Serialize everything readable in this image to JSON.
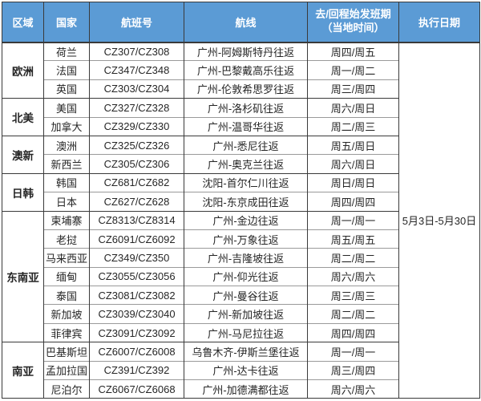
{
  "colors": {
    "header_bg": "#5B9BD5",
    "header_text": "#FFFFFF",
    "body_text": "#262626",
    "grid_dark": "#3A3A3A",
    "grid_light": "#9A9A9A"
  },
  "header": {
    "region": "区域",
    "country": "国家",
    "flight_no": "航班号",
    "route": "航线",
    "schedule_line1": "去/回程始发班期",
    "schedule_line2": "（当地时间）",
    "exec_date": "执行日期"
  },
  "execution_date": "5月3日-5月30日",
  "groups": [
    {
      "region": "欧洲",
      "rows": [
        {
          "country": "荷兰",
          "flight": "CZ307/CZ308",
          "route": "广州-阿姆斯特丹往返",
          "schedule": "周四/周五"
        },
        {
          "country": "法国",
          "flight": "CZ347/CZ348",
          "route": "广州-巴黎戴高乐往返",
          "schedule": "周一/周二"
        },
        {
          "country": "英国",
          "flight": "CZ303/CZ304",
          "route": "广州-伦敦希思罗往返",
          "schedule": "周三/周四"
        }
      ]
    },
    {
      "region": "北美",
      "rows": [
        {
          "country": "美国",
          "flight": "CZ327/CZ328",
          "route": "广州-洛杉矶往返",
          "schedule": "周六/周日"
        },
        {
          "country": "加拿大",
          "flight": "CZ329/CZ330",
          "route": "广州-温哥华往返",
          "schedule": "周二/周三"
        }
      ]
    },
    {
      "region": "澳新",
      "rows": [
        {
          "country": "澳洲",
          "flight": "CZ325/CZ326",
          "route": "广州-悉尼往返",
          "schedule": "周五/周日"
        },
        {
          "country": "新西兰",
          "flight": "CZ305/CZ306",
          "route": "广州-奥克兰往返",
          "schedule": "周六/周日"
        }
      ]
    },
    {
      "region": "日韩",
      "rows": [
        {
          "country": "韩国",
          "flight": "CZ681/CZ682",
          "route": "沈阳-首尔仁川往返",
          "schedule": "周日/周日"
        },
        {
          "country": "日本",
          "flight": "CZ627/CZ628",
          "route": "沈阳-东京成田往返",
          "schedule": "周四/周四"
        }
      ]
    },
    {
      "region": "东南亚",
      "rows": [
        {
          "country": "柬埔寨",
          "flight": "CZ8313/CZ8314",
          "route": "广州-金边往返",
          "schedule": "周一/周一"
        },
        {
          "country": "老挝",
          "flight": "CZ6091/CZ6092",
          "route": "广州-万象往返",
          "schedule": "周五/周五"
        },
        {
          "country": "马来西亚",
          "flight": "CZ349/CZ350",
          "route": "广州-吉隆坡往返",
          "schedule": "周二/周二"
        },
        {
          "country": "缅甸",
          "flight": "CZ3055/CZ3056",
          "route": "广州-仰光往返",
          "schedule": "周六/周六"
        },
        {
          "country": "泰国",
          "flight": "CZ3081/CZ3082",
          "route": "广州-曼谷往返",
          "schedule": "周三/周三"
        },
        {
          "country": "新加坡",
          "flight": "CZ3039/CZ3040",
          "route": "广州-新加坡往返",
          "schedule": "周二/周二"
        },
        {
          "country": "菲律宾",
          "flight": "CZ3091/CZ3092",
          "route": "广州-马尼拉往返",
          "schedule": "周四/周四"
        }
      ]
    },
    {
      "region": "南亚",
      "rows": [
        {
          "country": "巴基斯坦",
          "flight": "CZ6007/CZ6008",
          "route": "乌鲁木齐-伊斯兰堡往返",
          "schedule": "周一/周一"
        },
        {
          "country": "孟加拉国",
          "flight": "CZ391/CZ392",
          "route": "广州-达卡往返",
          "schedule": "周三/周四"
        },
        {
          "country": "尼泊尔",
          "flight": "CZ6067/CZ6068",
          "route": "广州-加德满都往返",
          "schedule": "周六/周六"
        }
      ]
    }
  ]
}
